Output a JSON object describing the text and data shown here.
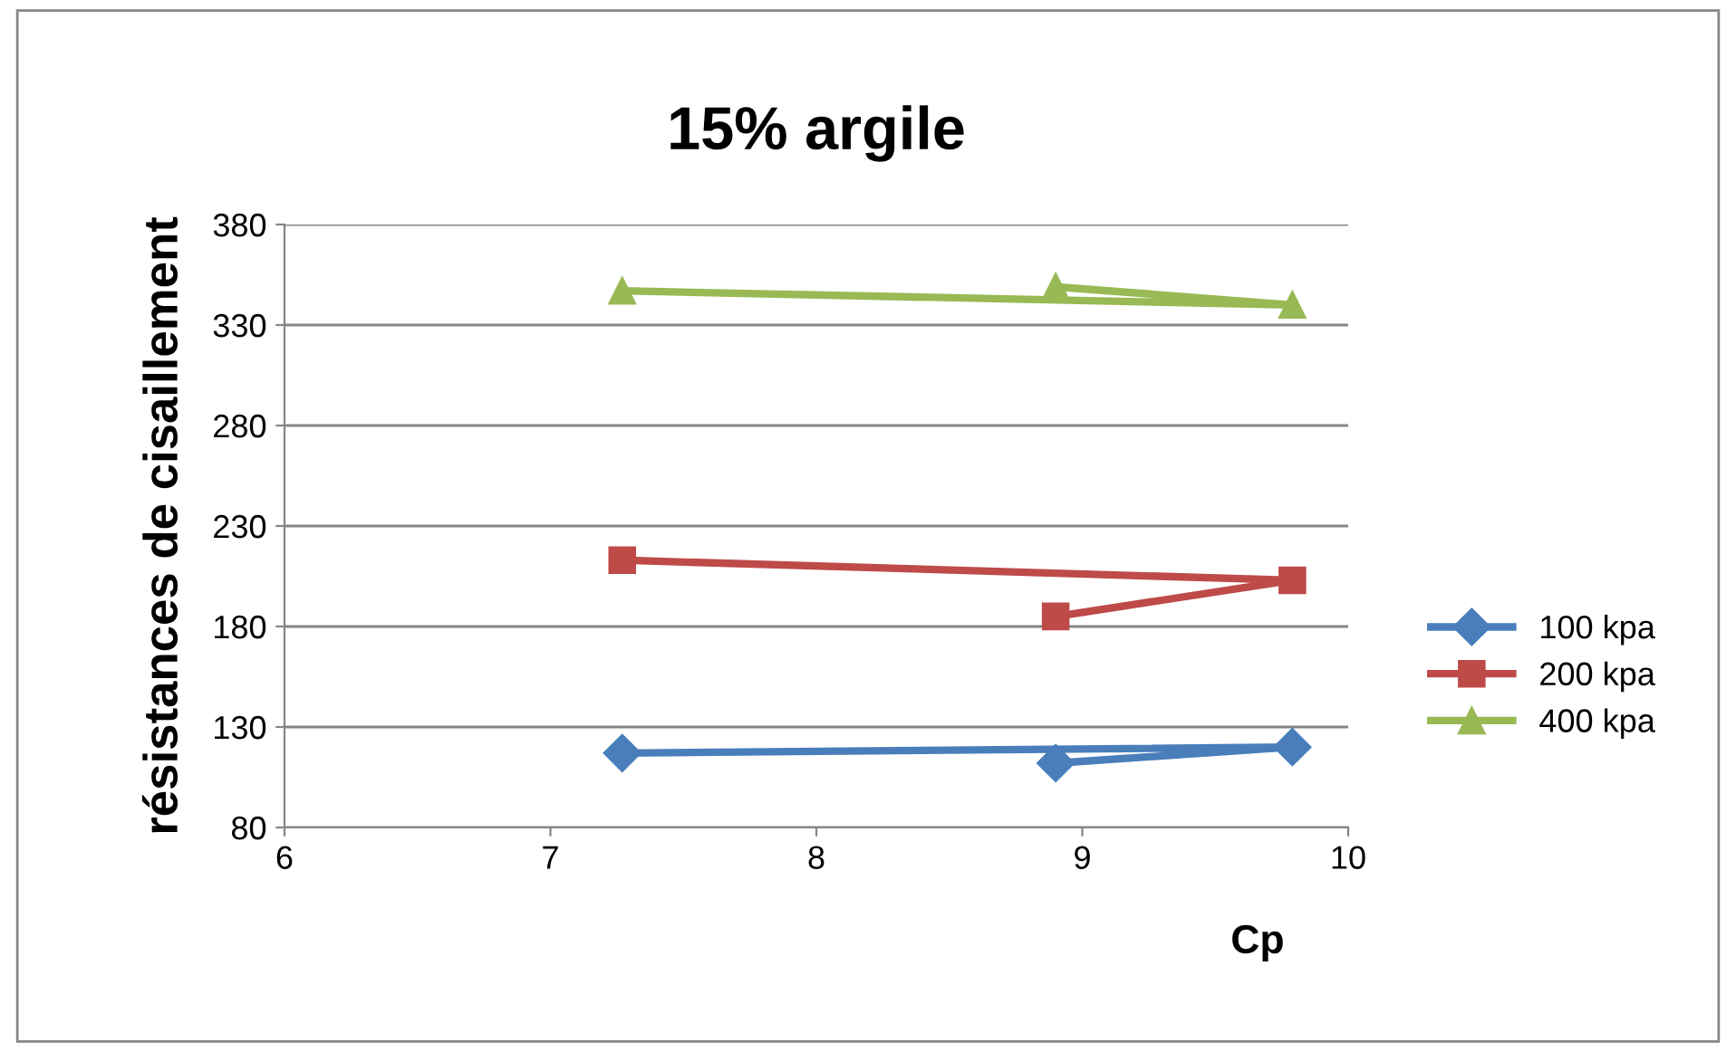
{
  "chart_data": {
    "type": "line",
    "title": "15% argile",
    "xlabel": "Cp",
    "ylabel": "résistances de cisaillement",
    "x": [
      7.27,
      9.79,
      8.9
    ],
    "series": [
      {
        "name": "100 kpa",
        "color": "#4a7ebb",
        "values": [
          117,
          120,
          112
        ],
        "marker": "diamond"
      },
      {
        "name": "200 kpa",
        "color": "#be4b48",
        "values": [
          213,
          203,
          185
        ],
        "marker": "square"
      },
      {
        "name": "400 kpa",
        "color": "#98b954",
        "values": [
          347,
          340,
          349
        ],
        "marker": "triangle"
      }
    ],
    "xlim": [
      6,
      10
    ],
    "xticks": [
      6,
      7,
      8,
      9,
      10
    ],
    "ylim": [
      80,
      380
    ],
    "yticks": [
      80,
      130,
      180,
      230,
      280,
      330,
      380
    ],
    "grid": "y",
    "legend": "right",
    "line_style": "solid"
  }
}
